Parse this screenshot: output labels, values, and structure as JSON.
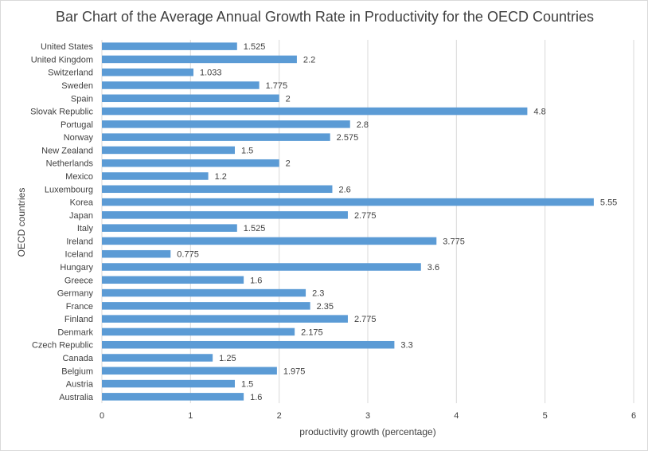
{
  "chart_data": {
    "type": "bar",
    "orientation": "horizontal",
    "title": "Bar Chart of the  Average Annual Growth Rate in Productivity for the OECD Countries",
    "xlabel": "productivity growth (percentage)",
    "ylabel": "OECD countries",
    "xlim": [
      0,
      6
    ],
    "x_ticks": [
      "0",
      "1",
      "2",
      "3",
      "4",
      "5",
      "6"
    ],
    "grid": true,
    "bar_color": "#5b9bd5",
    "categories": [
      "United States",
      "United Kingdom",
      "Switzerland",
      "Sweden",
      "Spain",
      "Slovak Republic",
      "Portugal",
      "Norway",
      "New Zealand",
      "Netherlands",
      "Mexico",
      "Luxembourg",
      "Korea",
      "Japan",
      "Italy",
      "Ireland",
      "Iceland",
      "Hungary",
      "Greece",
      "Germany",
      "France",
      "Finland",
      "Denmark",
      "Czech Republic",
      "Canada",
      "Belgium",
      "Austria",
      "Australia"
    ],
    "values": [
      1.525,
      2.2,
      1.033,
      1.775,
      2,
      4.8,
      2.8,
      2.575,
      1.5,
      2,
      1.2,
      2.6,
      5.55,
      2.775,
      1.525,
      3.775,
      0.775,
      3.6,
      1.6,
      2.3,
      2.35,
      2.775,
      2.175,
      3.3,
      1.25,
      1.975,
      1.5,
      1.6
    ],
    "data_labels": [
      "1.525",
      "2.2",
      "1.033",
      "1.775",
      "2",
      "4.8",
      "2.8",
      "2.575",
      "1.5",
      "2",
      "1.2",
      "2.6",
      "5.55",
      "2.775",
      "1.525",
      "3.775",
      "0.775",
      "3.6",
      "1.6",
      "2.3",
      "2.35",
      "2.775",
      "2.175",
      "3.3",
      "1.25",
      "1.975",
      "1.5",
      "1.6"
    ]
  }
}
